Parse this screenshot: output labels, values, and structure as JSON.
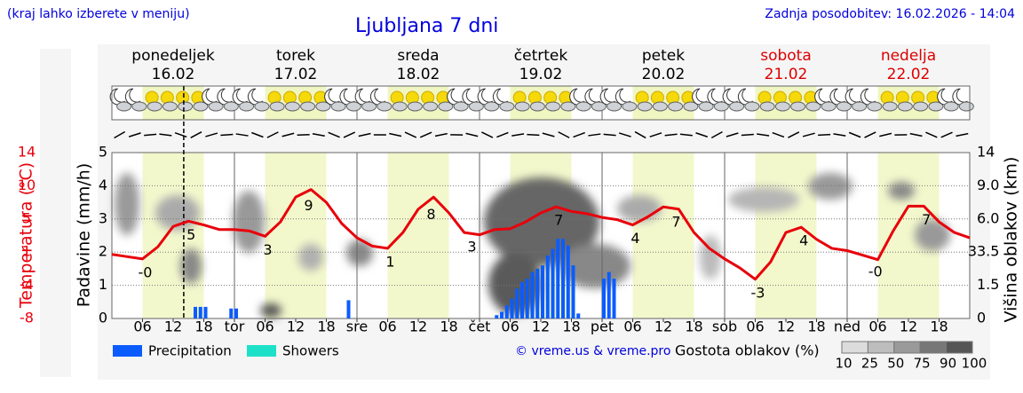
{
  "header": {
    "note": "(kraj lahko izberete v meniju)",
    "updated": "Zadnja posodobitev: 16.02.2026 - 14:04"
  },
  "chart_data": {
    "type": "meteogram",
    "title": "Ljubljana 7 dni",
    "days": [
      {
        "name": "ponedeljek",
        "date": "16.02",
        "color": "#000000"
      },
      {
        "name": "torek",
        "date": "17.02",
        "color": "#000000"
      },
      {
        "name": "sreda",
        "date": "18.02",
        "color": "#000000"
      },
      {
        "name": "četrtek",
        "date": "19.02",
        "color": "#000000"
      },
      {
        "name": "petek",
        "date": "20.02",
        "color": "#000000"
      },
      {
        "name": "sobota",
        "date": "21.02",
        "color": "#dd0000"
      },
      {
        "name": "nedelja",
        "date": "22.02",
        "color": "#dd0000"
      }
    ],
    "xlim": [
      0,
      168
    ],
    "xticks": [
      {
        "value": 6,
        "label": "06"
      },
      {
        "value": 12,
        "label": "12"
      },
      {
        "value": 18,
        "label": "18"
      },
      {
        "value": 24,
        "label": "tor"
      },
      {
        "value": 30,
        "label": "06"
      },
      {
        "value": 36,
        "label": "12"
      },
      {
        "value": 42,
        "label": "18"
      },
      {
        "value": 48,
        "label": "sre"
      },
      {
        "value": 54,
        "label": "06"
      },
      {
        "value": 60,
        "label": "12"
      },
      {
        "value": 66,
        "label": "18"
      },
      {
        "value": 72,
        "label": "čet"
      },
      {
        "value": 78,
        "label": "06"
      },
      {
        "value": 84,
        "label": "12"
      },
      {
        "value": 90,
        "label": "18"
      },
      {
        "value": 96,
        "label": "pet"
      },
      {
        "value": 102,
        "label": "06"
      },
      {
        "value": 108,
        "label": "12"
      },
      {
        "value": 114,
        "label": "18"
      },
      {
        "value": 120,
        "label": "sob"
      },
      {
        "value": 126,
        "label": "06"
      },
      {
        "value": 132,
        "label": "12"
      },
      {
        "value": 138,
        "label": "18"
      },
      {
        "value": 144,
        "label": "ned"
      },
      {
        "value": 150,
        "label": "06"
      },
      {
        "value": 156,
        "label": "12"
      },
      {
        "value": 162,
        "label": "18"
      }
    ],
    "now_hour": 14.07,
    "ylabel": "Padavine (mm/h)",
    "ylim": [
      0,
      5
    ],
    "yticks": [
      0,
      1,
      2,
      3,
      4,
      5
    ],
    "grid": true,
    "temperature": {
      "label": "Temperatura (°C)",
      "color": "#e8000b",
      "lim": [
        -8,
        14
      ],
      "ticks": [
        -8,
        {
          "value": -3.6,
          "label": "-4"
        },
        {
          "value": 0.8,
          "label": "1"
        },
        {
          "value": 5.2,
          "label": "5"
        },
        {
          "value": 9.6,
          "label": "10"
        },
        14
      ],
      "x": [
        0,
        3,
        6,
        9,
        12,
        15,
        18,
        21,
        24,
        27,
        30,
        33,
        36,
        39,
        42,
        45,
        48,
        51,
        54,
        57,
        60,
        63,
        66,
        69,
        72,
        75,
        78,
        81,
        84,
        87,
        90,
        93,
        96,
        99,
        102,
        105,
        108,
        111,
        114,
        117,
        120,
        123,
        126,
        129,
        132,
        135,
        138,
        141,
        144,
        147,
        150,
        153,
        156,
        159,
        162,
        165,
        168
      ],
      "values": [
        0.5,
        0.2,
        -0.1,
        1.5,
        4.2,
        4.9,
        4.4,
        3.8,
        3.8,
        3.6,
        2.9,
        4.8,
        8.1,
        9.1,
        7.4,
        4.6,
        2.7,
        1.6,
        1.3,
        3.4,
        6.5,
        8.1,
        6.0,
        3.4,
        3.1,
        3.8,
        3.9,
        4.8,
        6.0,
        6.8,
        6.2,
        5.9,
        5.4,
        5.1,
        4.4,
        5.5,
        6.8,
        6.5,
        3.4,
        1.3,
        -0.1,
        -1.3,
        -2.8,
        -0.5,
        3.4,
        4.1,
        2.5,
        1.3,
        1.0,
        0.4,
        -0.2,
        3.6,
        6.9,
        6.9,
        4.8,
        3.4,
        2.7
      ],
      "annotations": [
        {
          "x": 6,
          "text": "-0"
        },
        {
          "x": 15,
          "text": "5"
        },
        {
          "x": 30,
          "text": "3"
        },
        {
          "x": 38,
          "text": "9"
        },
        {
          "x": 54,
          "text": "1"
        },
        {
          "x": 62,
          "text": "8"
        },
        {
          "x": 70,
          "text": "3"
        },
        {
          "x": 87,
          "text": "7"
        },
        {
          "x": 102,
          "text": "4"
        },
        {
          "x": 110,
          "text": "7"
        },
        {
          "x": 126,
          "text": "-3"
        },
        {
          "x": 135,
          "text": "4"
        },
        {
          "x": 149,
          "text": "-0"
        },
        {
          "x": 159,
          "text": "7"
        },
        {
          "x": 168,
          "text": "3"
        }
      ]
    },
    "y2label": "Višina oblakov (km)",
    "y2lim": [
      0,
      14
    ],
    "y2ticks": [
      0,
      1.5,
      3.5,
      {
        "value": 6,
        "label": "6.0"
      },
      {
        "value": 9,
        "label": "9.0"
      },
      14
    ],
    "series": [
      {
        "name": "Precipitation",
        "color": "#0a5cff",
        "x": [
          16,
          17,
          18,
          23,
          24,
          46,
          75,
          76,
          77,
          78,
          79,
          80,
          81,
          82,
          83,
          84,
          85,
          86,
          87,
          88,
          89,
          90,
          91,
          96,
          97,
          98
        ],
        "values": [
          0.35,
          0.35,
          0.35,
          0.3,
          0.3,
          0.55,
          0.1,
          0.2,
          0.4,
          0.6,
          0.9,
          1.1,
          1.2,
          1.4,
          1.5,
          1.6,
          1.9,
          2.1,
          2.4,
          2.4,
          2.2,
          1.6,
          0.15,
          1.2,
          1.4,
          1.2
        ]
      },
      {
        "name": "Showers",
        "color": "#1ee0c8",
        "x": [],
        "values": []
      }
    ],
    "cloud_density": {
      "label": "Gostota oblakov (%)",
      "levels": [
        10,
        25,
        50,
        75,
        90,
        100
      ],
      "colors": [
        "#dcdcdc",
        "#bdbdbd",
        "#9a9a9a",
        "#777777",
        "#555555"
      ]
    },
    "credit": "© vreme.us & vreme.pro"
  }
}
